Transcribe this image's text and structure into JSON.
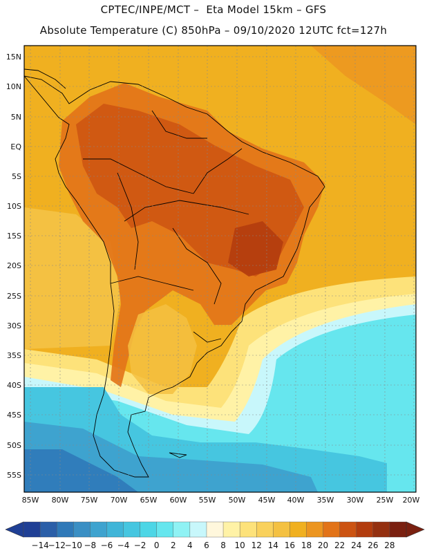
{
  "header": {
    "line1": "CPTEC/INPE/MCT –  Eta Model 15km – GFS",
    "line2": "Absolute Temperature (C) 850hPa – 09/10/2020 12UTC fct=127h"
  },
  "map": {
    "lat_labels": [
      "15N",
      "10N",
      "5N",
      "EQ",
      "5S",
      "10S",
      "15S",
      "20S",
      "25S",
      "30S",
      "35S",
      "40S",
      "45S",
      "50S",
      "55S"
    ],
    "lon_labels": [
      "85W",
      "80W",
      "75W",
      "70W",
      "65W",
      "60W",
      "55W",
      "50W",
      "45W",
      "40W",
      "35W",
      "30W",
      "25W",
      "20W"
    ]
  },
  "colorbar": {
    "labels": [
      "-14",
      "-12",
      "-10",
      "-8",
      "-6",
      "-4",
      "-2",
      "0",
      "2",
      "4",
      "6",
      "8",
      "10",
      "12",
      "14",
      "16",
      "18",
      "20",
      "22",
      "24",
      "26",
      "28"
    ],
    "colors": [
      "#1f3f95",
      "#2b5fa8",
      "#2f79b8",
      "#3a8fc4",
      "#3ea3cf",
      "#40b5d8",
      "#46c6e0",
      "#4dd6e6",
      "#66e6ee",
      "#8ff2f4",
      "#c8f7fb",
      "#fff7dc",
      "#fff2a6",
      "#fde27a",
      "#f9d15c",
      "#f4c142",
      "#f0b020",
      "#ec9520",
      "#e27318",
      "#cc5312",
      "#b23c0e",
      "#943010",
      "#7a2010"
    ]
  }
}
